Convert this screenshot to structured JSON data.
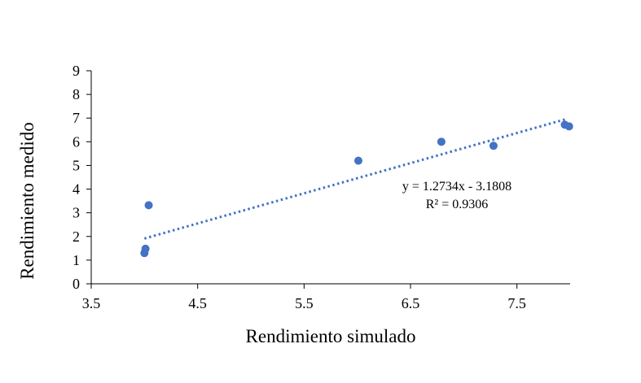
{
  "chart_data": {
    "type": "scatter",
    "title": "",
    "xlabel": "Rendimiento simulado",
    "ylabel": "Rendimiento medido",
    "xlim": [
      3.5,
      8.0
    ],
    "ylim": [
      0,
      9
    ],
    "x_ticks": [
      "3.5",
      "4.5",
      "5.5",
      "6.5",
      "7.5"
    ],
    "y_ticks": [
      "0",
      "1",
      "2",
      "3",
      "4",
      "5",
      "6",
      "7",
      "8",
      "9"
    ],
    "x_tick_values": [
      3.5,
      4.5,
      5.5,
      6.5,
      7.5
    ],
    "y_tick_values": [
      0,
      1,
      2,
      3,
      4,
      5,
      6,
      7,
      8,
      9
    ],
    "grid": false,
    "legend": "none",
    "marker_color": "#4472C4",
    "trendline_color": "#4472C4",
    "series": [
      {
        "points": [
          {
            "x": 4.0,
            "y": 1.3
          },
          {
            "x": 4.01,
            "y": 1.48
          },
          {
            "x": 4.04,
            "y": 3.32
          },
          {
            "x": 6.01,
            "y": 5.2
          },
          {
            "x": 6.79,
            "y": 6.0
          },
          {
            "x": 7.28,
            "y": 5.83
          },
          {
            "x": 7.95,
            "y": 6.72
          },
          {
            "x": 7.99,
            "y": 6.65
          }
        ]
      }
    ],
    "trendline": {
      "type": "linear",
      "slope": 1.2734,
      "intercept": -3.1808,
      "x_range": [
        4.0,
        7.95
      ],
      "equation_label": "y = 1.2734x - 3.1808",
      "r2_label": "R² = 0.9306"
    }
  }
}
